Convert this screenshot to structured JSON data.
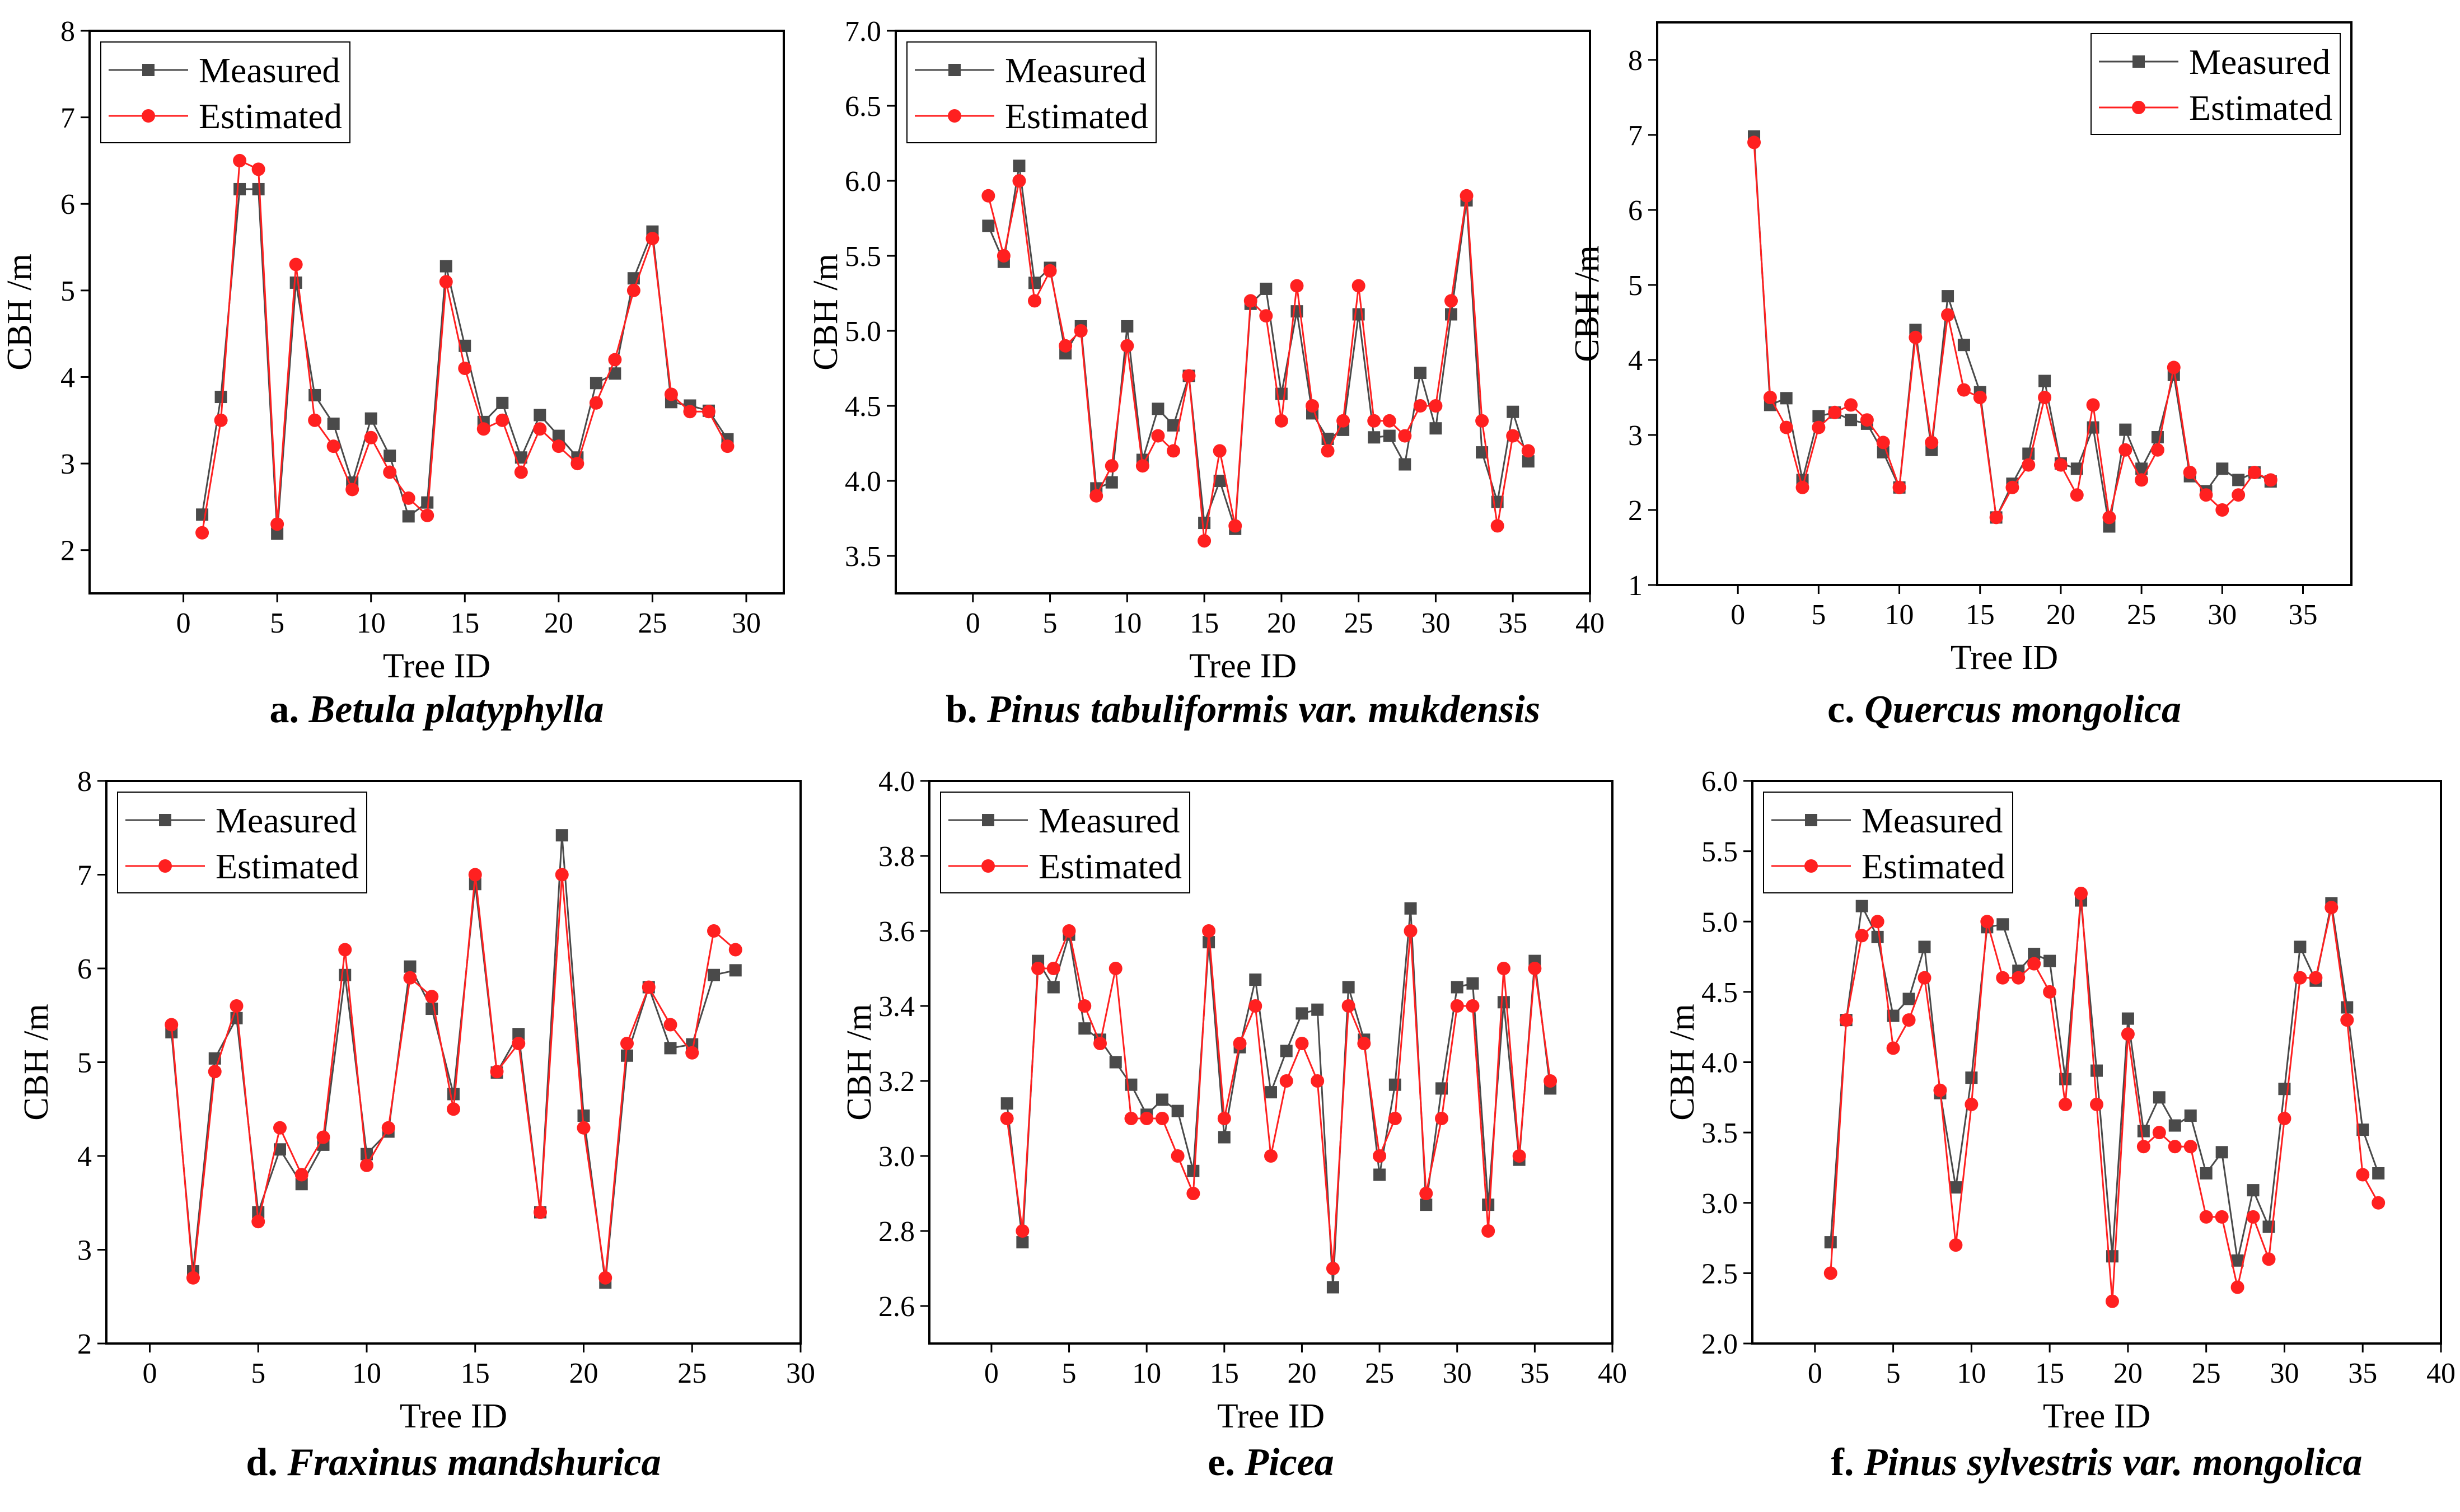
{
  "colors": {
    "measured": "#4a4a4a",
    "estimated": "#ff2020",
    "axis": "#000000"
  },
  "chart_data": [
    {
      "type": "line",
      "caption_prefix": "a.",
      "caption_species": "Betula platyphylla",
      "xlabel": "Tree ID",
      "ylabel": "CBH /m",
      "xlim": [
        -5,
        32
      ],
      "ylim": [
        1.5,
        8
      ],
      "xticks": [
        0,
        5,
        10,
        15,
        20,
        25,
        30
      ],
      "yticks": [
        2,
        3,
        4,
        5,
        6,
        7,
        8
      ],
      "legend": "top-left",
      "series": [
        {
          "name": "Measured",
          "marker": "square",
          "x": [
            1,
            2,
            3,
            4,
            5,
            6,
            7,
            8,
            9,
            10,
            11,
            12,
            13,
            14,
            15,
            16,
            17,
            18,
            19,
            20,
            21,
            22,
            23,
            24,
            25,
            26,
            27,
            28,
            29
          ],
          "y": [
            2.41,
            3.77,
            6.17,
            6.17,
            2.19,
            5.09,
            3.79,
            3.46,
            2.78,
            3.52,
            3.09,
            2.39,
            2.55,
            5.28,
            4.36,
            3.48,
            3.7,
            3.07,
            3.56,
            3.32,
            3.07,
            3.93,
            4.04,
            5.14,
            5.68,
            3.71,
            3.67,
            3.61,
            3.28
          ]
        },
        {
          "name": "Estimated",
          "marker": "circle",
          "x": [
            1,
            2,
            3,
            4,
            5,
            6,
            7,
            8,
            9,
            10,
            11,
            12,
            13,
            14,
            15,
            16,
            17,
            18,
            19,
            20,
            21,
            22,
            23,
            24,
            25,
            26,
            27,
            28,
            29
          ],
          "y": [
            2.2,
            3.5,
            6.5,
            6.4,
            2.3,
            5.3,
            3.5,
            3.2,
            2.7,
            3.3,
            2.9,
            2.6,
            2.4,
            5.1,
            4.1,
            3.4,
            3.5,
            2.9,
            3.4,
            3.2,
            3.0,
            3.7,
            4.2,
            5.0,
            5.6,
            3.8,
            3.6,
            3.6,
            3.2
          ]
        }
      ]
    },
    {
      "type": "line",
      "caption_prefix": "b.",
      "caption_species": "Pinus tabuliformis var. mukdensis",
      "xlabel": "Tree ID",
      "ylabel": "CBH /m",
      "xlim": [
        -5,
        40
      ],
      "ylim": [
        3.25,
        7.0
      ],
      "xticks": [
        0,
        5,
        10,
        15,
        20,
        25,
        30,
        35,
        40
      ],
      "yticks": [
        3.5,
        4.0,
        4.5,
        5.0,
        5.5,
        6.0,
        6.5,
        7.0
      ],
      "ytick_labels": [
        "3.5",
        "4.0",
        "4.5",
        "5.0",
        "5.5",
        "6.0",
        "6.5",
        "7.0"
      ],
      "legend": "top-left",
      "series": [
        {
          "name": "Measured",
          "marker": "square",
          "x": [
            1,
            2,
            3,
            4,
            5,
            6,
            7,
            8,
            9,
            10,
            11,
            12,
            13,
            14,
            15,
            16,
            17,
            18,
            19,
            20,
            21,
            22,
            23,
            24,
            25,
            26,
            27,
            28,
            29,
            30,
            31,
            32,
            33,
            34,
            35,
            36
          ],
          "y": [
            5.7,
            5.46,
            6.1,
            5.32,
            5.42,
            4.85,
            5.03,
            3.95,
            3.99,
            5.03,
            4.14,
            4.48,
            4.37,
            4.7,
            3.72,
            4.0,
            3.68,
            5.18,
            5.28,
            4.58,
            5.13,
            4.45,
            4.28,
            4.34,
            5.11,
            4.29,
            4.3,
            4.11,
            4.72,
            4.35,
            5.11,
            5.87,
            4.19,
            3.86,
            4.46,
            4.13
          ]
        },
        {
          "name": "Estimated",
          "marker": "circle",
          "x": [
            1,
            2,
            3,
            4,
            5,
            6,
            7,
            8,
            9,
            10,
            11,
            12,
            13,
            14,
            15,
            16,
            17,
            18,
            19,
            20,
            21,
            22,
            23,
            24,
            25,
            26,
            27,
            28,
            29,
            30,
            31,
            32,
            33,
            34,
            35,
            36
          ],
          "y": [
            5.9,
            5.5,
            6.0,
            5.2,
            5.4,
            4.9,
            5.0,
            3.9,
            4.1,
            4.9,
            4.1,
            4.3,
            4.2,
            4.7,
            3.6,
            4.2,
            3.7,
            5.2,
            5.1,
            4.4,
            5.3,
            4.5,
            4.2,
            4.4,
            5.3,
            4.4,
            4.4,
            4.3,
            4.5,
            4.5,
            5.2,
            5.9,
            4.4,
            3.7,
            4.3,
            4.2
          ]
        }
      ]
    },
    {
      "type": "line",
      "caption_prefix": "c.",
      "caption_species": "Quercus mongolica",
      "xlabel": "Tree ID",
      "ylabel": "CBH /m",
      "xlim": [
        -5,
        38
      ],
      "ylim": [
        1,
        8.5
      ],
      "xticks": [
        0,
        5,
        10,
        15,
        20,
        25,
        30,
        35
      ],
      "yticks": [
        1,
        2,
        3,
        4,
        5,
        6,
        7,
        8
      ],
      "legend": "top-right",
      "series": [
        {
          "name": "Measured",
          "marker": "square",
          "x": [
            1,
            2,
            3,
            4,
            5,
            6,
            7,
            8,
            9,
            10,
            11,
            12,
            13,
            14,
            15,
            16,
            17,
            18,
            19,
            20,
            21,
            22,
            23,
            24,
            25,
            26,
            27,
            28,
            29,
            30,
            31,
            32,
            33
          ],
          "y": [
            6.98,
            3.4,
            3.49,
            2.4,
            3.25,
            3.3,
            3.2,
            3.15,
            2.77,
            2.3,
            4.4,
            2.8,
            4.85,
            4.2,
            3.57,
            1.9,
            2.35,
            2.75,
            3.72,
            2.62,
            2.55,
            3.1,
            1.78,
            3.07,
            2.55,
            2.97,
            3.8,
            2.45,
            2.25,
            2.55,
            2.4,
            2.5,
            2.38
          ]
        },
        {
          "name": "Estimated",
          "marker": "circle",
          "x": [
            1,
            2,
            3,
            4,
            5,
            6,
            7,
            8,
            9,
            10,
            11,
            12,
            13,
            14,
            15,
            16,
            17,
            18,
            19,
            20,
            21,
            22,
            23,
            24,
            25,
            26,
            27,
            28,
            29,
            30,
            31,
            32,
            33
          ],
          "y": [
            6.9,
            3.5,
            3.1,
            2.3,
            3.1,
            3.3,
            3.4,
            3.2,
            2.9,
            2.3,
            4.3,
            2.9,
            4.6,
            3.6,
            3.5,
            1.9,
            2.3,
            2.6,
            3.5,
            2.6,
            2.2,
            3.4,
            1.9,
            2.8,
            2.4,
            2.8,
            3.9,
            2.5,
            2.2,
            2.0,
            2.2,
            2.5,
            2.4
          ]
        }
      ]
    },
    {
      "type": "line",
      "caption_prefix": "d.",
      "caption_species": "Fraxinus mandshurica",
      "xlabel": "Tree ID",
      "ylabel": "CBH /m",
      "xlim": [
        -2,
        30
      ],
      "ylim": [
        2,
        8
      ],
      "xticks": [
        0,
        5,
        10,
        15,
        20,
        25,
        30
      ],
      "yticks": [
        2,
        3,
        4,
        5,
        6,
        7,
        8
      ],
      "legend": "top-left",
      "series": [
        {
          "name": "Measured",
          "marker": "square",
          "x": [
            1,
            2,
            3,
            4,
            5,
            6,
            7,
            8,
            9,
            10,
            11,
            12,
            13,
            14,
            15,
            16,
            17,
            18,
            19,
            20,
            21,
            22,
            23,
            24,
            25,
            26,
            27
          ],
          "y": [
            5.32,
            2.77,
            5.04,
            5.47,
            3.4,
            4.07,
            3.7,
            4.12,
            5.93,
            4.02,
            4.26,
            6.02,
            5.57,
            4.66,
            6.9,
            4.89,
            5.3,
            3.4,
            7.42,
            4.43,
            2.65,
            5.07,
            5.8,
            5.15,
            5.19,
            5.93,
            5.98
          ]
        },
        {
          "name": "Estimated",
          "marker": "circle",
          "x": [
            1,
            2,
            3,
            4,
            5,
            6,
            7,
            8,
            9,
            10,
            11,
            12,
            13,
            14,
            15,
            16,
            17,
            18,
            19,
            20,
            21,
            22,
            23,
            24,
            25,
            26,
            27
          ],
          "y": [
            5.4,
            2.7,
            4.9,
            5.6,
            3.3,
            4.3,
            3.8,
            4.2,
            6.2,
            3.9,
            4.3,
            5.9,
            5.7,
            4.5,
            7.0,
            4.9,
            5.2,
            3.4,
            7.0,
            4.3,
            2.7,
            5.2,
            5.8,
            5.4,
            5.1,
            6.4,
            6.2
          ]
        }
      ]
    },
    {
      "type": "line",
      "caption_prefix": "e.",
      "caption_species": "Picea",
      "xlabel": "Tree ID",
      "ylabel": "CBH /m",
      "xlim": [
        -4,
        40
      ],
      "ylim": [
        2.5,
        4.0
      ],
      "xticks": [
        0,
        5,
        10,
        15,
        20,
        25,
        30,
        35,
        40
      ],
      "yticks": [
        2.6,
        2.8,
        3.0,
        3.2,
        3.4,
        3.6,
        3.8,
        4.0
      ],
      "ytick_labels": [
        "2.6",
        "2.8",
        "3.0",
        "3.2",
        "3.4",
        "3.6",
        "3.8",
        "4.0"
      ],
      "legend": "top-left",
      "series": [
        {
          "name": "Measured",
          "marker": "square",
          "x": [
            1,
            2,
            3,
            4,
            5,
            6,
            7,
            8,
            9,
            10,
            11,
            12,
            13,
            14,
            15,
            16,
            17,
            18,
            19,
            20,
            21,
            22,
            23,
            24,
            25,
            26,
            27,
            28,
            29,
            30,
            31,
            32,
            33,
            34,
            35,
            36
          ],
          "y": [
            3.14,
            2.77,
            3.52,
            3.45,
            3.59,
            3.34,
            3.31,
            3.25,
            3.19,
            3.11,
            3.15,
            3.12,
            2.96,
            3.57,
            3.05,
            3.29,
            3.47,
            3.17,
            3.28,
            3.38,
            3.39,
            2.65,
            3.45,
            3.31,
            2.95,
            3.19,
            3.66,
            2.87,
            3.18,
            3.45,
            3.46,
            2.87,
            3.41,
            2.99,
            3.52,
            3.18
          ]
        },
        {
          "name": "Estimated",
          "marker": "circle",
          "x": [
            1,
            2,
            3,
            4,
            5,
            6,
            7,
            8,
            9,
            10,
            11,
            12,
            13,
            14,
            15,
            16,
            17,
            18,
            19,
            20,
            21,
            22,
            23,
            24,
            25,
            26,
            27,
            28,
            29,
            30,
            31,
            32,
            33,
            34,
            35,
            36
          ],
          "y": [
            3.1,
            2.8,
            3.5,
            3.5,
            3.6,
            3.4,
            3.3,
            3.5,
            3.1,
            3.1,
            3.1,
            3.0,
            2.9,
            3.6,
            3.1,
            3.3,
            3.4,
            3.0,
            3.2,
            3.3,
            3.2,
            2.7,
            3.4,
            3.3,
            3.0,
            3.1,
            3.6,
            2.9,
            3.1,
            3.4,
            3.4,
            2.8,
            3.5,
            3.0,
            3.5,
            3.2
          ]
        }
      ]
    },
    {
      "type": "line",
      "caption_prefix": "f.",
      "caption_species": "Pinus sylvestris var. mongolica",
      "xlabel": "Tree ID",
      "ylabel": "CBH /m",
      "xlim": [
        -4,
        40
      ],
      "ylim": [
        2.0,
        6.0
      ],
      "xticks": [
        0,
        5,
        10,
        15,
        20,
        25,
        30,
        35,
        40
      ],
      "yticks": [
        2.0,
        2.5,
        3.0,
        3.5,
        4.0,
        4.5,
        5.0,
        5.5,
        6.0
      ],
      "ytick_labels": [
        "2.0",
        "2.5",
        "3.0",
        "3.5",
        "4.0",
        "4.5",
        "5.0",
        "5.5",
        "6.0"
      ],
      "legend": "top-left",
      "series": [
        {
          "name": "Measured",
          "marker": "square",
          "x": [
            1,
            2,
            3,
            4,
            5,
            6,
            7,
            8,
            9,
            10,
            11,
            12,
            13,
            14,
            15,
            16,
            17,
            18,
            19,
            20,
            21,
            22,
            23,
            24,
            25,
            26,
            27,
            28,
            29,
            30,
            31,
            32,
            33,
            34,
            35,
            36
          ],
          "y": [
            2.72,
            4.3,
            5.11,
            4.89,
            4.33,
            4.45,
            4.82,
            3.78,
            3.11,
            3.89,
            4.96,
            4.98,
            4.65,
            4.77,
            4.72,
            3.88,
            5.15,
            3.94,
            2.62,
            4.31,
            3.51,
            3.75,
            3.55,
            3.62,
            3.21,
            3.36,
            2.59,
            3.09,
            2.83,
            3.81,
            4.82,
            4.58,
            5.13,
            4.39,
            3.52,
            3.21
          ]
        },
        {
          "name": "Estimated",
          "marker": "circle",
          "x": [
            1,
            2,
            3,
            4,
            5,
            6,
            7,
            8,
            9,
            10,
            11,
            12,
            13,
            14,
            15,
            16,
            17,
            18,
            19,
            20,
            21,
            22,
            23,
            24,
            25,
            26,
            27,
            28,
            29,
            30,
            31,
            32,
            33,
            34,
            35,
            36
          ],
          "y": [
            2.5,
            4.3,
            4.9,
            5.0,
            4.1,
            4.3,
            4.6,
            3.8,
            2.7,
            3.7,
            5.0,
            4.6,
            4.6,
            4.7,
            4.5,
            3.7,
            5.2,
            3.7,
            2.3,
            4.2,
            3.4,
            3.5,
            3.4,
            3.4,
            2.9,
            2.9,
            2.4,
            2.9,
            2.6,
            3.6,
            4.6,
            4.6,
            5.1,
            4.3,
            3.2,
            3.0
          ]
        }
      ]
    }
  ]
}
